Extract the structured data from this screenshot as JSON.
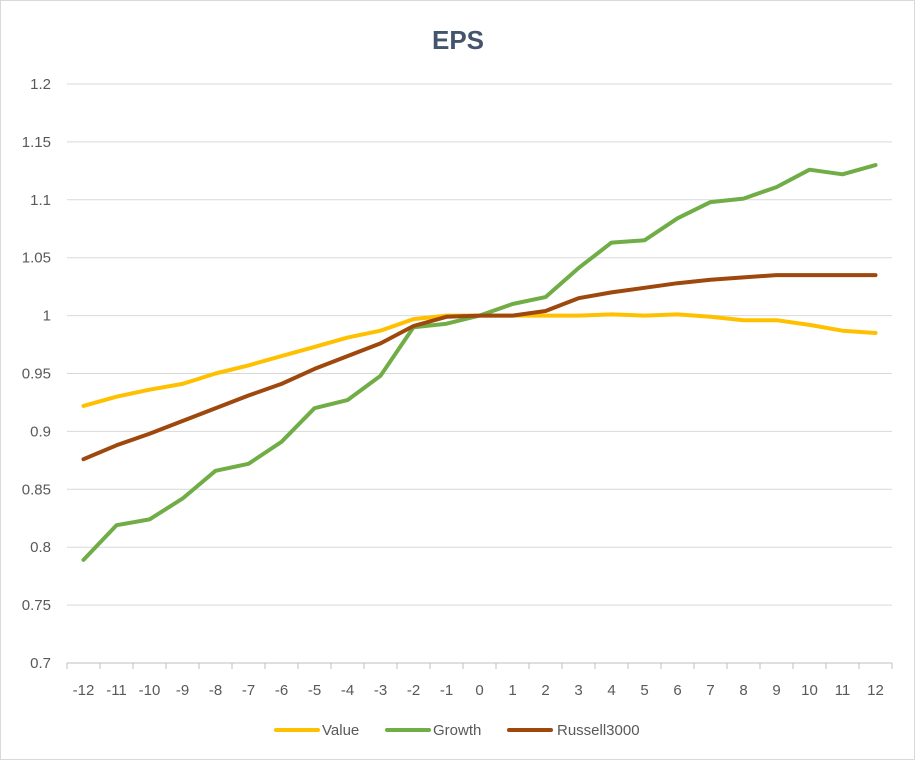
{
  "chart_data": {
    "type": "line",
    "title": "EPS",
    "xlabel": "",
    "ylabel": "",
    "ylim": [
      0.7,
      1.2
    ],
    "yticks": [
      "1.2",
      "1.15",
      "1.1",
      "1.05",
      "1",
      "0.95",
      "0.9",
      "0.85",
      "0.8",
      "0.75",
      "0.7"
    ],
    "categories": [
      "-12",
      "-11",
      "-10",
      "-9",
      "-8",
      "-7",
      "-6",
      "-5",
      "-4",
      "-3",
      "-2",
      "-1",
      "0",
      "1",
      "2",
      "3",
      "4",
      "5",
      "6",
      "7",
      "8",
      "9",
      "10",
      "11",
      "12"
    ],
    "grid": true,
    "legend_position": "bottom",
    "series": [
      {
        "name": "Value",
        "color": "#FFC000",
        "values": [
          0.922,
          0.93,
          0.936,
          0.941,
          0.95,
          0.957,
          0.965,
          0.973,
          0.981,
          0.987,
          0.997,
          1.0,
          1.0,
          1.0,
          1.0,
          1.0,
          1.001,
          1.0,
          1.001,
          0.999,
          0.996,
          0.996,
          0.992,
          0.987,
          0.985
        ]
      },
      {
        "name": "Growth",
        "color": "#70AD47",
        "values": [
          0.789,
          0.819,
          0.824,
          0.842,
          0.866,
          0.872,
          0.891,
          0.92,
          0.927,
          0.948,
          0.99,
          0.993,
          1.0,
          1.01,
          1.016,
          1.041,
          1.063,
          1.065,
          1.084,
          1.098,
          1.101,
          1.111,
          1.126,
          1.122,
          1.13
        ]
      },
      {
        "name": "Russell3000",
        "color": "#9E480E",
        "values": [
          0.876,
          0.888,
          0.898,
          0.909,
          0.92,
          0.931,
          0.941,
          0.954,
          0.965,
          0.976,
          0.991,
          0.999,
          1.0,
          1.0,
          1.004,
          1.015,
          1.02,
          1.024,
          1.028,
          1.031,
          1.033,
          1.035,
          1.035,
          1.035,
          1.035
        ]
      }
    ],
    "colors": {
      "title": "#44546A",
      "tick": "#595959",
      "grid": "#D9D9D9",
      "axis": "#BFBFBF"
    }
  }
}
